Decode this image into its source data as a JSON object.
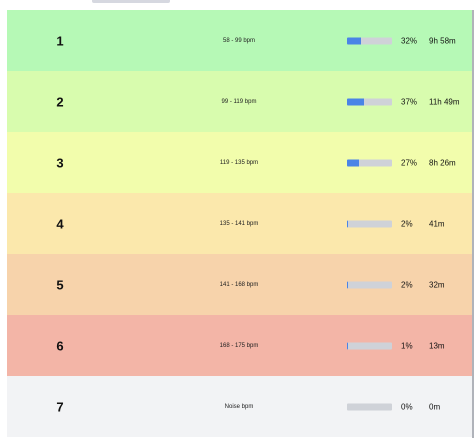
{
  "zones": [
    {
      "number": "1",
      "range": "58 - 99 bpm",
      "percent_label": "32%",
      "percent": 32,
      "duration": "9h 58m",
      "color": "#b6f9b6"
    },
    {
      "number": "2",
      "range": "99 - 119 bpm",
      "percent_label": "37%",
      "percent": 37,
      "duration": "11h 49m",
      "color": "#d8fcae"
    },
    {
      "number": "3",
      "range": "119 - 135 bpm",
      "percent_label": "27%",
      "percent": 27,
      "duration": "8h 26m",
      "color": "#f2fdac"
    },
    {
      "number": "4",
      "range": "135 - 141 bpm",
      "percent_label": "2%",
      "percent": 2,
      "duration": "41m",
      "color": "#fbe8ac"
    },
    {
      "number": "5",
      "range": "141 - 168 bpm",
      "percent_label": "2%",
      "percent": 2,
      "duration": "32m",
      "color": "#f7d3ab"
    },
    {
      "number": "6",
      "range": "168 - 175 bpm",
      "percent_label": "1%",
      "percent": 1,
      "duration": "13m",
      "color": "#f3b5a7"
    },
    {
      "number": "7",
      "range": "Noise bpm",
      "percent_label": "0%",
      "percent": 0,
      "duration": "0m",
      "color": "#f2f3f5"
    }
  ],
  "colors": {
    "bar_fill": "#4a84e6",
    "bar_track": "#cfd2d8"
  }
}
